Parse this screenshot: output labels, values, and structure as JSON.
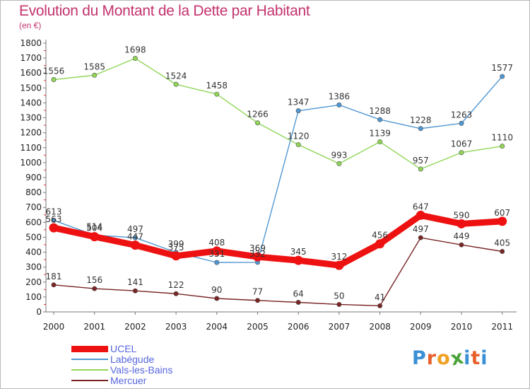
{
  "title": "Evolution du Montant de la Dette par Habitant",
  "subtitle": "(en €)",
  "logo": {
    "letters": [
      "P",
      "r",
      "o",
      "x",
      "i",
      "t",
      "i"
    ],
    "colors": [
      "#3a8fd6",
      "#e8602c",
      "#f0a020",
      "#4aa23a",
      "#3a8fd6",
      "#e8602c",
      "#3a8fd6"
    ]
  },
  "chart_data": {
    "type": "line",
    "x": [
      "2000",
      "2001",
      "2002",
      "2003",
      "2004",
      "2005",
      "2006",
      "2007",
      "2008",
      "2009",
      "2010",
      "2011"
    ],
    "yticks": [
      "0",
      "100",
      "200",
      "300",
      "400",
      "500",
      "600",
      "700",
      "800",
      "900",
      "1000",
      "1100",
      "1200",
      "1300",
      "1400",
      "1500",
      "1600",
      "1700",
      "1800"
    ],
    "ylim": [
      0,
      1800
    ],
    "grid": false,
    "legend_position": "bottom-left",
    "series": [
      {
        "name": "UCEL",
        "color": "#ee1111",
        "values": [
          563,
          504,
          447,
          375,
          408,
          369,
          345,
          312,
          456,
          647,
          590,
          607
        ]
      },
      {
        "name": "Labégude",
        "color": "#4f97d3",
        "values": [
          613,
          514,
          497,
          399,
          331,
          332,
          1347,
          1386,
          1288,
          1228,
          1263,
          1577
        ]
      },
      {
        "name": "Vals-les-Bains",
        "color": "#8fd657",
        "values": [
          1556,
          1585,
          1698,
          1524,
          1458,
          1266,
          1120,
          993,
          1139,
          957,
          1067,
          1110
        ]
      },
      {
        "name": "Mercuer",
        "color": "#7a2424",
        "values": [
          181,
          156,
          141,
          122,
          90,
          77,
          64,
          50,
          41,
          497,
          449,
          405
        ]
      }
    ]
  }
}
